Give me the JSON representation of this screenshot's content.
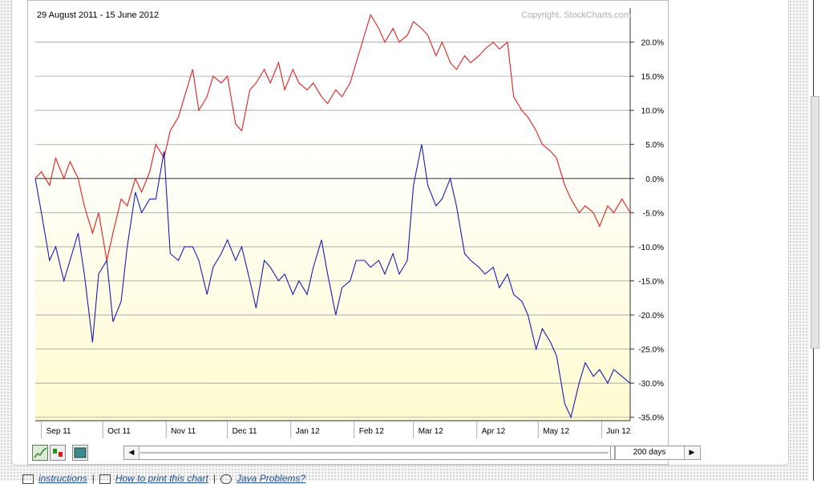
{
  "chart_data": {
    "type": "line",
    "title": "",
    "date_range": "29 August 2011 - 15 June 2012",
    "copyright": "Copyright, StockCharts.com",
    "x_tick_labels": [
      "Sep 11",
      "Oct 11",
      "Nov 11",
      "Dec 11",
      "Jan 12",
      "Feb 12",
      "Mar 12",
      "Apr 12",
      "May 12",
      "Jun 12"
    ],
    "y_tick_labels": [
      "20.0%",
      "15.0%",
      "10.0%",
      "5.0%",
      "0.0%",
      "-5.0%",
      "-10.0%",
      "-15.0%",
      "-20.0%",
      "-25.0%",
      "-30.0%",
      "-35.0%"
    ],
    "y_ticks": [
      20,
      15,
      10,
      5,
      0,
      -5,
      -10,
      -15,
      -20,
      -25,
      -30,
      -35
    ],
    "ylim": [
      -35.5,
      25
    ],
    "x_range": [
      "2011-08-29",
      "2012-06-15"
    ],
    "grid": true,
    "series": [
      {
        "color": "#e02020",
        "points": [
          [
            "2011-08-29",
            0
          ],
          [
            "2011-09-01",
            1
          ],
          [
            "2011-09-05",
            -1
          ],
          [
            "2011-09-08",
            3
          ],
          [
            "2011-09-12",
            0
          ],
          [
            "2011-09-15",
            2.5
          ],
          [
            "2011-09-19",
            0
          ],
          [
            "2011-09-22",
            -4
          ],
          [
            "2011-09-26",
            -8
          ],
          [
            "2011-09-29",
            -5
          ],
          [
            "2011-10-03",
            -12
          ],
          [
            "2011-10-06",
            -8
          ],
          [
            "2011-10-10",
            -3
          ],
          [
            "2011-10-13",
            -4
          ],
          [
            "2011-10-17",
            0
          ],
          [
            "2011-10-20",
            -2
          ],
          [
            "2011-10-24",
            1
          ],
          [
            "2011-10-27",
            5
          ],
          [
            "2011-10-31",
            3
          ],
          [
            "2011-11-03",
            7
          ],
          [
            "2011-11-07",
            9
          ],
          [
            "2011-11-10",
            12
          ],
          [
            "2011-11-14",
            16
          ],
          [
            "2011-11-17",
            10
          ],
          [
            "2011-11-21",
            12
          ],
          [
            "2011-11-24",
            15
          ],
          [
            "2011-11-28",
            14
          ],
          [
            "2011-12-01",
            15
          ],
          [
            "2011-12-05",
            8
          ],
          [
            "2011-12-08",
            7
          ],
          [
            "2011-12-12",
            13
          ],
          [
            "2011-12-15",
            14
          ],
          [
            "2011-12-19",
            16
          ],
          [
            "2011-12-22",
            14
          ],
          [
            "2011-12-26",
            17
          ],
          [
            "2011-12-29",
            13
          ],
          [
            "2012-01-02",
            16
          ],
          [
            "2012-01-05",
            14
          ],
          [
            "2012-01-09",
            13
          ],
          [
            "2012-01-12",
            14
          ],
          [
            "2012-01-16",
            12
          ],
          [
            "2012-01-19",
            11
          ],
          [
            "2012-01-23",
            13
          ],
          [
            "2012-01-26",
            12
          ],
          [
            "2012-01-30",
            14
          ],
          [
            "2012-02-02",
            17
          ],
          [
            "2012-02-06",
            21
          ],
          [
            "2012-02-09",
            24
          ],
          [
            "2012-02-13",
            22
          ],
          [
            "2012-02-16",
            20
          ],
          [
            "2012-02-20",
            22
          ],
          [
            "2012-02-23",
            20
          ],
          [
            "2012-02-27",
            21
          ],
          [
            "2012-03-01",
            23
          ],
          [
            "2012-03-05",
            22
          ],
          [
            "2012-03-08",
            21
          ],
          [
            "2012-03-12",
            18
          ],
          [
            "2012-03-15",
            20
          ],
          [
            "2012-03-19",
            17
          ],
          [
            "2012-03-22",
            16
          ],
          [
            "2012-03-26",
            18
          ],
          [
            "2012-03-29",
            17
          ],
          [
            "2012-04-02",
            18
          ],
          [
            "2012-04-05",
            19
          ],
          [
            "2012-04-09",
            20
          ],
          [
            "2012-04-12",
            19
          ],
          [
            "2012-04-16",
            20
          ],
          [
            "2012-04-19",
            12
          ],
          [
            "2012-04-23",
            10
          ],
          [
            "2012-04-26",
            9
          ],
          [
            "2012-04-30",
            7
          ],
          [
            "2012-05-03",
            5
          ],
          [
            "2012-05-07",
            4
          ],
          [
            "2012-05-10",
            3
          ],
          [
            "2012-05-14",
            -1
          ],
          [
            "2012-05-17",
            -3
          ],
          [
            "2012-05-21",
            -5
          ],
          [
            "2012-05-24",
            -4
          ],
          [
            "2012-05-28",
            -5
          ],
          [
            "2012-05-31",
            -7
          ],
          [
            "2012-06-04",
            -4
          ],
          [
            "2012-06-07",
            -5
          ],
          [
            "2012-06-11",
            -3
          ],
          [
            "2012-06-15",
            -5
          ]
        ]
      },
      {
        "color": "#1a1ab4",
        "points": [
          [
            "2011-08-29",
            0
          ],
          [
            "2011-09-01",
            -5
          ],
          [
            "2011-09-05",
            -12
          ],
          [
            "2011-09-08",
            -10
          ],
          [
            "2011-09-12",
            -15
          ],
          [
            "2011-09-15",
            -12
          ],
          [
            "2011-09-19",
            -8
          ],
          [
            "2011-09-22",
            -14
          ],
          [
            "2011-09-26",
            -24
          ],
          [
            "2011-09-29",
            -14
          ],
          [
            "2011-10-03",
            -12
          ],
          [
            "2011-10-06",
            -21
          ],
          [
            "2011-10-10",
            -18
          ],
          [
            "2011-10-13",
            -10
          ],
          [
            "2011-10-17",
            -2
          ],
          [
            "2011-10-20",
            -5
          ],
          [
            "2011-10-24",
            -3
          ],
          [
            "2011-10-27",
            -3
          ],
          [
            "2011-10-31",
            4
          ],
          [
            "2011-11-03",
            -11
          ],
          [
            "2011-11-07",
            -12
          ],
          [
            "2011-11-10",
            -10
          ],
          [
            "2011-11-14",
            -10
          ],
          [
            "2011-11-17",
            -12
          ],
          [
            "2011-11-21",
            -17
          ],
          [
            "2011-11-24",
            -13
          ],
          [
            "2011-11-28",
            -11
          ],
          [
            "2011-12-01",
            -9
          ],
          [
            "2011-12-05",
            -12
          ],
          [
            "2011-12-08",
            -10
          ],
          [
            "2011-12-12",
            -15
          ],
          [
            "2011-12-15",
            -19
          ],
          [
            "2011-12-19",
            -12
          ],
          [
            "2011-12-22",
            -13
          ],
          [
            "2011-12-26",
            -15
          ],
          [
            "2011-12-29",
            -14
          ],
          [
            "2012-01-02",
            -17
          ],
          [
            "2012-01-05",
            -15
          ],
          [
            "2012-01-09",
            -17
          ],
          [
            "2012-01-12",
            -13
          ],
          [
            "2012-01-16",
            -9
          ],
          [
            "2012-01-19",
            -14
          ],
          [
            "2012-01-23",
            -20
          ],
          [
            "2012-01-26",
            -16
          ],
          [
            "2012-01-30",
            -15
          ],
          [
            "2012-02-02",
            -12
          ],
          [
            "2012-02-06",
            -12
          ],
          [
            "2012-02-09",
            -13
          ],
          [
            "2012-02-13",
            -12
          ],
          [
            "2012-02-16",
            -14
          ],
          [
            "2012-02-20",
            -11
          ],
          [
            "2012-02-23",
            -14
          ],
          [
            "2012-02-27",
            -12
          ],
          [
            "2012-03-01",
            -1
          ],
          [
            "2012-03-05",
            5
          ],
          [
            "2012-03-08",
            -1
          ],
          [
            "2012-03-12",
            -4
          ],
          [
            "2012-03-15",
            -3
          ],
          [
            "2012-03-19",
            0
          ],
          [
            "2012-03-22",
            -4
          ],
          [
            "2012-03-26",
            -11
          ],
          [
            "2012-03-29",
            -12
          ],
          [
            "2012-04-02",
            -13
          ],
          [
            "2012-04-05",
            -14
          ],
          [
            "2012-04-09",
            -13
          ],
          [
            "2012-04-12",
            -16
          ],
          [
            "2012-04-16",
            -14
          ],
          [
            "2012-04-19",
            -17
          ],
          [
            "2012-04-23",
            -18
          ],
          [
            "2012-04-26",
            -20
          ],
          [
            "2012-04-30",
            -25
          ],
          [
            "2012-05-03",
            -22
          ],
          [
            "2012-05-07",
            -24
          ],
          [
            "2012-05-10",
            -26
          ],
          [
            "2012-05-14",
            -33
          ],
          [
            "2012-05-17",
            -35
          ],
          [
            "2012-05-21",
            -30
          ],
          [
            "2012-05-24",
            -27
          ],
          [
            "2012-05-28",
            -29
          ],
          [
            "2012-05-31",
            -28
          ],
          [
            "2012-06-04",
            -30
          ],
          [
            "2012-06-07",
            -28
          ],
          [
            "2012-06-11",
            -29
          ],
          [
            "2012-06-15",
            -30
          ]
        ]
      }
    ]
  },
  "toolbar": {
    "period_value": "200 days"
  },
  "footer": {
    "links": [
      "instructions",
      "How to print this chart",
      "Java Problems?"
    ]
  }
}
